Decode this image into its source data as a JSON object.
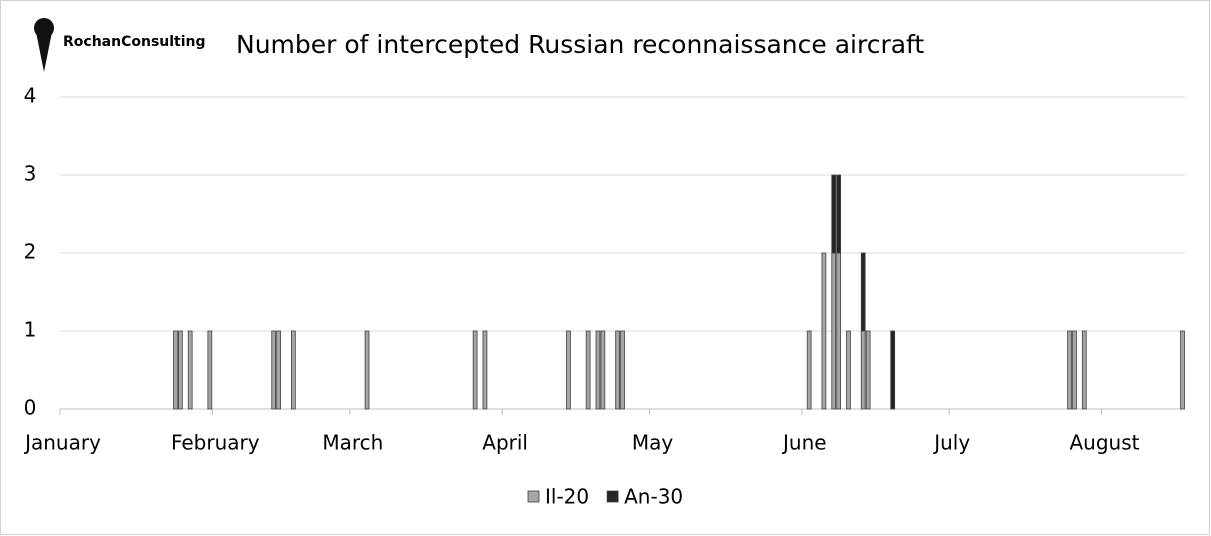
{
  "logo_text": "RochanConsulting",
  "chart_data": {
    "type": "stacked_bar",
    "title": "Number of intercepted Russian reconnaissance aircraft",
    "x": [
      23,
      24,
      26,
      30,
      43,
      44,
      47,
      62,
      84,
      86,
      103,
      107,
      109,
      110,
      113,
      114,
      152,
      155,
      157,
      158,
      160,
      163,
      164,
      169,
      205,
      206,
      208,
      228
    ],
    "series": [
      {
        "name": "Il-20",
        "color": "#a6a6a6",
        "values": [
          1,
          1,
          1,
          1,
          1,
          1,
          1,
          1,
          1,
          1,
          1,
          1,
          1,
          1,
          1,
          1,
          1,
          2,
          2,
          2,
          1,
          1,
          1,
          0,
          1,
          1,
          1,
          1
        ]
      },
      {
        "name": "An-30",
        "color": "#262626",
        "values": [
          0,
          0,
          0,
          0,
          0,
          0,
          0,
          0,
          0,
          0,
          0,
          0,
          0,
          0,
          0,
          0,
          0,
          0,
          1,
          1,
          0,
          1,
          0,
          1,
          0,
          0,
          0,
          0
        ]
      }
    ],
    "xlim": [
      0,
      229
    ],
    "xticks": [
      {
        "value": 0,
        "label": "January"
      },
      {
        "value": 31,
        "label": "February"
      },
      {
        "value": 59,
        "label": "March"
      },
      {
        "value": 90,
        "label": "April"
      },
      {
        "value": 120,
        "label": "May"
      },
      {
        "value": 151,
        "label": "June"
      },
      {
        "value": 181,
        "label": "July"
      },
      {
        "value": 212,
        "label": "August"
      }
    ],
    "ylim": [
      0,
      4
    ],
    "yticks": [
      0,
      1,
      2,
      3,
      4
    ],
    "grid": true,
    "legend": "bottom"
  }
}
